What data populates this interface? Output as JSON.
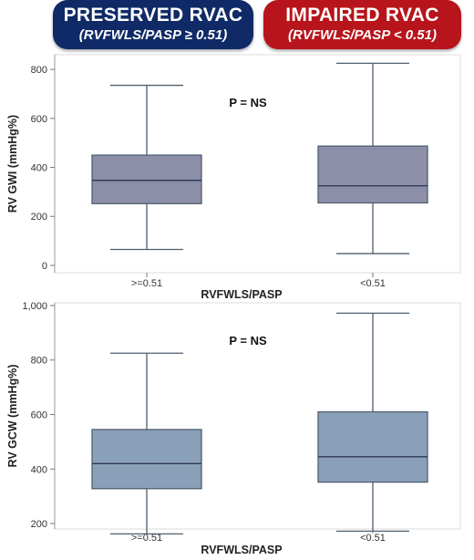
{
  "header": {
    "left": {
      "title": "PRESERVED RVAC",
      "subtitle": "(RVFWLS/PASP ≥ 0.51)",
      "color": "#0f2a66"
    },
    "right": {
      "title": "IMPAIRED RVAC",
      "subtitle": "(RVFWLS/PASP < 0.51)",
      "color": "#b8141b"
    }
  },
  "chart_data": [
    {
      "type": "box",
      "ylabel": "RV GWI (mmHg%)",
      "xlabel": "RVFWLS/PASP",
      "annotation": "P = NS",
      "ylim": [
        -30,
        860
      ],
      "yticks": [
        0,
        200,
        400,
        600,
        800
      ],
      "ytick_labels": [
        "0",
        "200",
        "400",
        "600",
        "800"
      ],
      "grid": false,
      "box_color": "#8d8fa8",
      "categories": [
        ">=0.51",
        "<0.51"
      ],
      "boxes": [
        {
          "category": ">=0.51",
          "min": 65,
          "q1": 252,
          "median": 347,
          "q3": 450,
          "max": 735
        },
        {
          "category": "<0.51",
          "min": 48,
          "q1": 255,
          "median": 325,
          "q3": 487,
          "max": 825
        }
      ]
    },
    {
      "type": "box",
      "ylabel": "RV GCW (mmHg%)",
      "xlabel": "RVFWLS/PASP",
      "annotation": "P = NS",
      "ylim": [
        180,
        1010
      ],
      "yticks": [
        200,
        400,
        600,
        800,
        1000
      ],
      "ytick_labels": [
        "200",
        "400",
        "600",
        "800",
        "1,000"
      ],
      "grid": false,
      "box_color": "#8aa0b8",
      "categories": [
        ">=0.51",
        "<0.51"
      ],
      "boxes": [
        {
          "category": ">=0.51",
          "min": 162,
          "q1": 328,
          "median": 420,
          "q3": 545,
          "max": 825
        },
        {
          "category": "<0.51",
          "min": 172,
          "q1": 352,
          "median": 445,
          "q3": 610,
          "max": 972
        }
      ]
    }
  ]
}
